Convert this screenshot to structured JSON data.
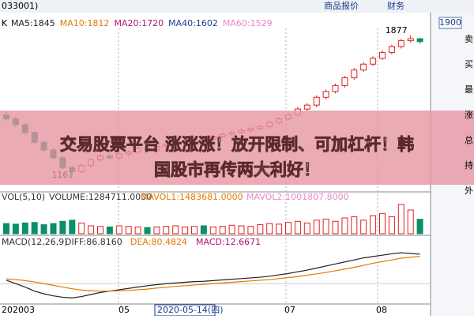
{
  "header": {
    "code": "033001)",
    "menu": [
      "商品报价",
      "财务"
    ],
    "price_box": "1900"
  },
  "side": [
    "卖",
    "买",
    "最",
    "涨",
    "总",
    "持",
    "外"
  ],
  "legend": {
    "k": "K",
    "ma": [
      {
        "text": "MA5:1845",
        "color": "#222222"
      },
      {
        "text": "MA10:1812",
        "color": "#e07b00"
      },
      {
        "text": "MA20:1720",
        "color": "#b0156f"
      },
      {
        "text": "MA40:1602",
        "color": "#1f3a93"
      },
      {
        "text": "MA60:1529",
        "color": "#e887c0"
      }
    ]
  },
  "vol_legend": [
    "VOL(5,10)",
    "VOLUME:1284711.0000",
    "MAVOL1:1483681.0000",
    "MAVOL2:1001807.8000"
  ],
  "macd_legend": [
    "MACD(12,26,9)",
    "DIFF:86.8160",
    "DEA:80.4824",
    "MACD:12.6671"
  ],
  "x_labels": [
    "202003",
    "05",
    "2020-05-14(四)",
    "07",
    "08"
  ],
  "headline": [
    "交易股票平台 涨涨涨！放开限制、可加杠杆！韩",
    "国股市再传两大利好！"
  ],
  "chart_data": {
    "type": "candlestick",
    "annotations": [
      {
        "text": "1877",
        "value": 1877,
        "index": 43
      },
      {
        "text": "1161",
        "value": 1161,
        "index": 7
      }
    ],
    "ylim": [
      1108,
      1917
    ],
    "candles": {
      "open": [
        1470,
        1450,
        1420,
        1380,
        1330,
        1290,
        1250,
        1200,
        1180,
        1210,
        1240,
        1260,
        1250,
        1270,
        1280,
        1300,
        1290,
        1310,
        1320,
        1330,
        1340,
        1350,
        1345,
        1360,
        1370,
        1380,
        1390,
        1400,
        1410,
        1430,
        1450,
        1470,
        1500,
        1520,
        1560,
        1590,
        1620,
        1660,
        1700,
        1730,
        1760,
        1790,
        1820,
        1850,
        1860
      ],
      "high": [
        1485,
        1465,
        1430,
        1390,
        1340,
        1300,
        1260,
        1210,
        1220,
        1250,
        1270,
        1270,
        1280,
        1290,
        1310,
        1310,
        1320,
        1330,
        1340,
        1350,
        1360,
        1360,
        1370,
        1380,
        1390,
        1400,
        1410,
        1420,
        1440,
        1460,
        1480,
        1510,
        1530,
        1570,
        1600,
        1630,
        1670,
        1710,
        1740,
        1770,
        1800,
        1830,
        1860,
        1877,
        1865
      ],
      "low": [
        1440,
        1410,
        1370,
        1320,
        1280,
        1240,
        1190,
        1161,
        1170,
        1200,
        1230,
        1240,
        1240,
        1260,
        1270,
        1280,
        1280,
        1300,
        1310,
        1320,
        1330,
        1335,
        1335,
        1350,
        1360,
        1370,
        1380,
        1390,
        1400,
        1420,
        1440,
        1460,
        1490,
        1510,
        1550,
        1580,
        1610,
        1650,
        1690,
        1720,
        1750,
        1780,
        1810,
        1840,
        1835
      ],
      "close": [
        1450,
        1420,
        1380,
        1330,
        1290,
        1250,
        1200,
        1180,
        1210,
        1240,
        1260,
        1250,
        1270,
        1280,
        1300,
        1290,
        1310,
        1320,
        1330,
        1340,
        1350,
        1345,
        1360,
        1370,
        1380,
        1390,
        1400,
        1410,
        1430,
        1450,
        1470,
        1500,
        1520,
        1560,
        1590,
        1620,
        1660,
        1700,
        1730,
        1760,
        1790,
        1820,
        1850,
        1860,
        1845
      ]
    },
    "volume": {
      "ylim": [
        0,
        2800000
      ],
      "values": [
        900000,
        850000,
        950000,
        1000000,
        800000,
        900000,
        1100000,
        1200000,
        950000,
        700000,
        650000,
        600000,
        700000,
        650000,
        600000,
        550000,
        600000,
        650000,
        700000,
        600000,
        650000,
        700000,
        600000,
        650000,
        750000,
        700000,
        650000,
        800000,
        900000,
        850000,
        1000000,
        1100000,
        950000,
        1200000,
        1300000,
        1100000,
        1400000,
        1500000,
        1200000,
        1600000,
        1800000,
        1500000,
        2600000,
        2100000,
        1284711
      ]
    },
    "macd": {
      "ylim": [
        -60,
        110
      ],
      "series": [
        {
          "name": "DIFF",
          "color": "#222222",
          "values": [
            10,
            0,
            -10,
            -22,
            -30,
            -36,
            -40,
            -42,
            -38,
            -32,
            -26,
            -22,
            -18,
            -14,
            -10,
            -6,
            -3,
            0,
            2,
            4,
            6,
            7,
            9,
            11,
            13,
            15,
            17,
            19,
            22,
            26,
            30,
            35,
            40,
            46,
            52,
            58,
            64,
            70,
            76,
            80,
            84,
            88,
            91,
            89,
            86.816
          ]
        },
        {
          "name": "DEA",
          "color": "#e07b00",
          "values": [
            14,
            12,
            9,
            5,
            0,
            -5,
            -10,
            -15,
            -19,
            -21,
            -22,
            -22,
            -21,
            -20,
            -18,
            -16,
            -13,
            -11,
            -8,
            -6,
            -4,
            -2,
            0,
            2,
            4,
            6,
            8,
            10,
            12,
            15,
            18,
            21,
            25,
            29,
            33,
            38,
            43,
            48,
            54,
            60,
            65,
            70,
            75,
            78,
            80.4824
          ]
        }
      ]
    }
  }
}
